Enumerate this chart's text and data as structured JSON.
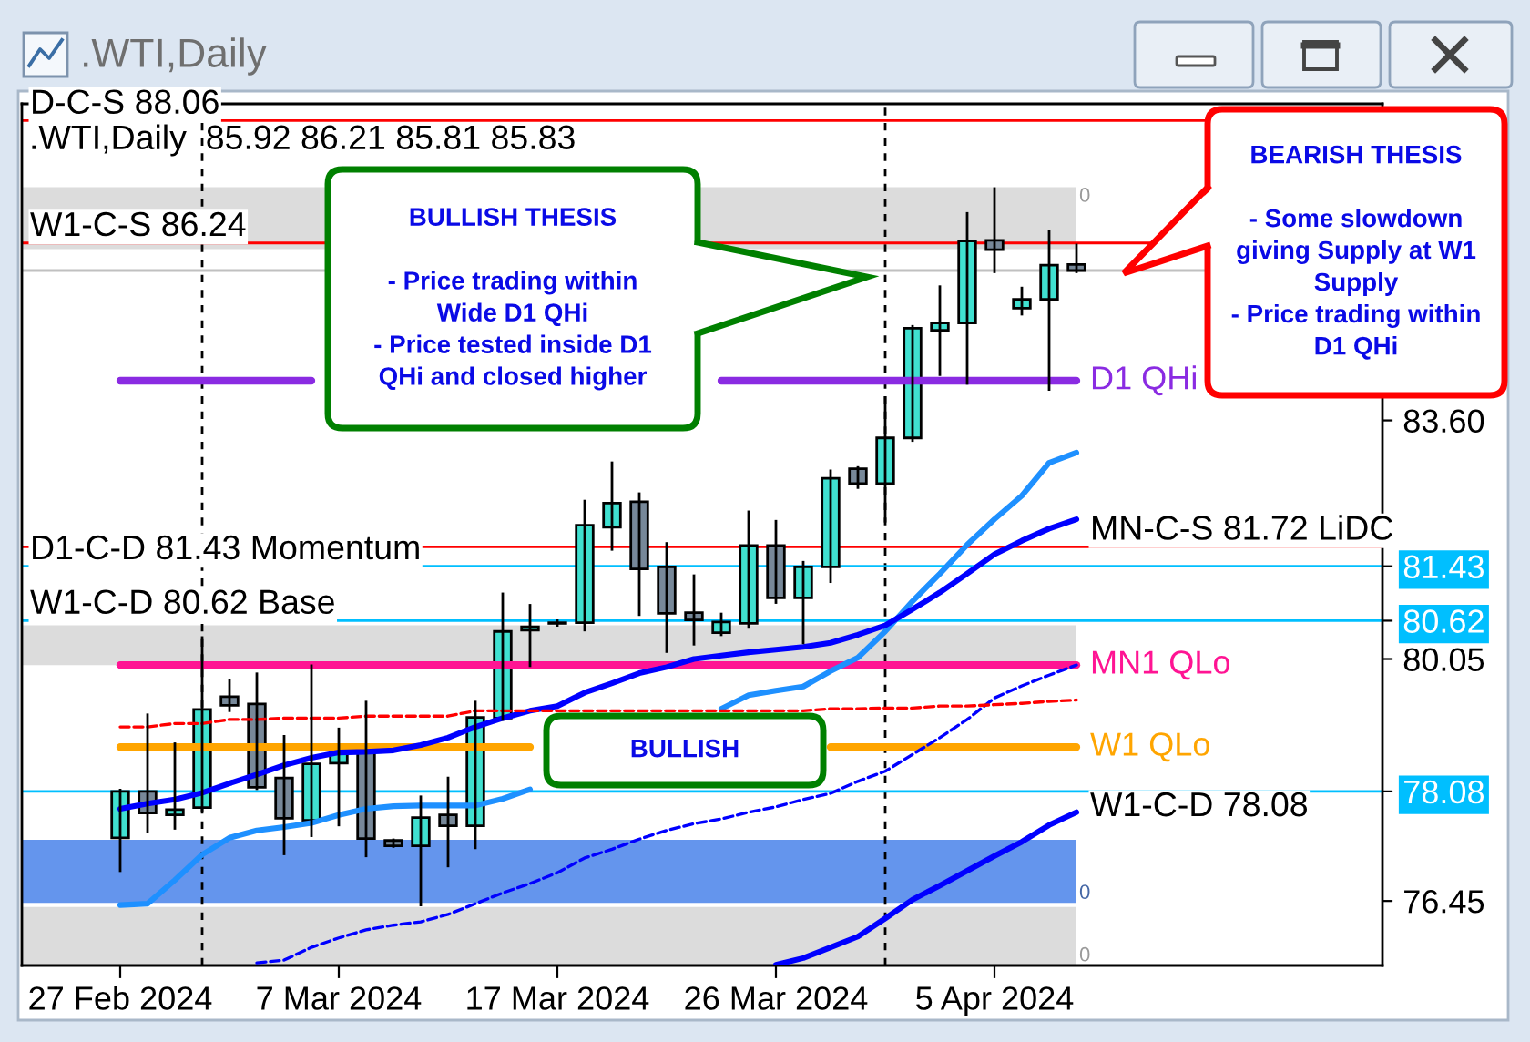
{
  "chart_data": {
    "type": "candlestick",
    "title": ".WTI,Daily",
    "subtitle": ".WTI,Daily  85.92 86.21 85.81 85.83",
    "categories": [
      "27 Feb 2024",
      null,
      null,
      null,
      null,
      null,
      null,
      null,
      "7 Mar 2024",
      null,
      null,
      null,
      null,
      null,
      null,
      null,
      "17 Mar 2024",
      null,
      null,
      null,
      null,
      null,
      null,
      null,
      "26 Mar 2024",
      null,
      null,
      null,
      null,
      null,
      null,
      null,
      "5 Apr 2024",
      null,
      null,
      null
    ],
    "ohlc": [
      [
        77.39,
        78.1,
        76.9,
        78.08
      ],
      [
        78.08,
        79.22,
        77.48,
        77.76
      ],
      [
        77.73,
        78.79,
        77.53,
        77.81
      ],
      [
        77.84,
        80.37,
        77.8,
        79.3
      ],
      [
        79.49,
        79.74,
        79.28,
        79.36
      ],
      [
        79.38,
        79.83,
        78.12,
        78.14
      ],
      [
        78.28,
        78.9,
        77.15,
        77.68
      ],
      [
        77.65,
        79.95,
        77.42,
        78.49
      ],
      [
        78.5,
        79.01,
        77.58,
        78.65
      ],
      [
        78.68,
        79.41,
        77.12,
        77.38
      ],
      [
        77.35,
        77.36,
        77.26,
        77.27
      ],
      [
        77.27,
        78.0,
        76.39,
        77.69
      ],
      [
        77.73,
        78.28,
        76.97,
        77.57
      ],
      [
        77.57,
        79.41,
        77.24,
        79.18
      ],
      [
        79.17,
        81.02,
        79.15,
        80.46
      ],
      [
        80.48,
        80.85,
        79.95,
        80.53
      ],
      [
        80.58,
        80.62,
        80.55,
        80.59
      ],
      [
        80.59,
        82.4,
        80.48,
        82.04
      ],
      [
        82.01,
        82.97,
        81.68,
        82.37
      ],
      [
        82.39,
        82.51,
        80.71,
        81.39
      ],
      [
        81.42,
        81.77,
        80.16,
        80.73
      ],
      [
        80.74,
        81.29,
        80.27,
        80.63
      ],
      [
        80.44,
        80.72,
        80.41,
        80.6
      ],
      [
        80.58,
        82.24,
        80.52,
        81.74
      ],
      [
        81.74,
        82.1,
        80.89,
        80.96
      ],
      [
        80.96,
        81.49,
        80.29,
        81.42
      ],
      [
        81.42,
        82.85,
        81.2,
        82.74
      ],
      [
        82.88,
        82.9,
        82.6,
        82.66
      ],
      [
        82.66,
        83.94,
        82.1,
        83.34
      ],
      [
        83.34,
        85.0,
        83.3,
        84.97
      ],
      [
        84.94,
        85.59,
        84.28,
        85.05
      ],
      [
        85.05,
        86.68,
        84.15,
        86.27
      ],
      [
        86.28,
        87.05,
        85.81,
        86.14
      ],
      [
        85.27,
        85.57,
        85.18,
        85.4
      ],
      [
        85.4,
        86.41,
        84.06,
        85.91
      ],
      [
        85.92,
        86.21,
        85.81,
        85.83
      ]
    ],
    "colors": [
      "#40e0d0",
      "#778899",
      "#40e0d0",
      "#40e0d0",
      "#778899",
      "#778899",
      "#778899",
      "#40e0d0",
      "#40e0d0",
      "#778899",
      "#778899",
      "#40e0d0",
      "#778899",
      "#40e0d0",
      "#40e0d0",
      "#40e0d0",
      "#40e0d0",
      "#40e0d0",
      "#40e0d0",
      "#778899",
      "#778899",
      "#778899",
      "#40e0d0",
      "#40e0d0",
      "#778899",
      "#40e0d0",
      "#40e0d0",
      "#778899",
      "#40e0d0",
      "#40e0d0",
      "#40e0d0",
      "#40e0d0",
      "#778899",
      "#40e0d0",
      "#40e0d0",
      "#778899"
    ],
    "series": [
      {
        "type": "line",
        "color": "#1e90ff",
        "values": [
          76.39,
          76.41,
          76.76,
          77.14,
          77.39,
          77.5,
          77.55,
          77.61,
          77.73,
          77.82,
          77.86,
          77.87,
          77.87,
          77.87,
          77.97,
          78.11,
          null,
          null,
          null,
          null,
          null,
          null,
          79.31,
          79.51,
          79.58,
          79.64,
          79.87,
          80.07,
          80.46,
          80.91,
          81.32,
          81.75,
          82.13,
          82.48,
          82.97,
          83.12
        ]
      },
      {
        "type": "line",
        "color": "#0000ff",
        "values": [
          77.82,
          77.9,
          77.96,
          78.06,
          78.2,
          78.33,
          78.47,
          78.58,
          78.66,
          78.67,
          78.69,
          78.77,
          78.88,
          79.04,
          79.17,
          79.28,
          79.35,
          79.55,
          79.69,
          79.84,
          79.93,
          80.05,
          80.1,
          80.15,
          80.19,
          80.23,
          80.29,
          80.41,
          80.55,
          80.79,
          81.04,
          81.32,
          81.61,
          81.81,
          81.99,
          82.13
        ]
      },
      {
        "type": "line",
        "color": "#0000ff",
        "values": [
          null,
          null,
          null,
          null,
          null,
          null,
          null,
          null,
          null,
          null,
          null,
          null,
          null,
          null,
          null,
          null,
          null,
          null,
          null,
          null,
          null,
          null,
          null,
          null,
          75.5,
          75.6,
          75.76,
          75.92,
          76.19,
          76.47,
          76.68,
          76.9,
          77.12,
          77.33,
          77.58,
          77.77
        ]
      },
      {
        "type": "line",
        "color": "#0000ff",
        "line_style": "dashed",
        "values": [
          null,
          null,
          null,
          null,
          null,
          75.53,
          75.57,
          75.76,
          75.9,
          76.02,
          76.09,
          76.14,
          76.25,
          76.41,
          76.57,
          76.71,
          76.87,
          77.09,
          77.22,
          77.37,
          77.5,
          77.6,
          77.67,
          77.77,
          77.85,
          77.96,
          78.05,
          78.23,
          78.38,
          78.63,
          78.88,
          79.15,
          79.47,
          79.65,
          79.81,
          79.96
        ]
      },
      {
        "type": "line",
        "color": "#ff0000",
        "line_style": "dashed",
        "values": [
          79.04,
          79.04,
          79.09,
          79.09,
          79.15,
          79.15,
          79.17,
          79.17,
          79.17,
          79.2,
          79.2,
          79.2,
          79.2,
          79.28,
          79.28,
          79.28,
          79.28,
          79.28,
          79.28,
          79.28,
          79.28,
          79.28,
          79.28,
          79.28,
          79.28,
          79.28,
          79.31,
          79.31,
          79.32,
          79.32,
          79.35,
          79.35,
          79.37,
          79.39,
          79.42,
          79.44
        ]
      },
      {
        "type": "line",
        "name": "D1 QHi",
        "color": "#8a2be2",
        "values": [
          84.19,
          84.19,
          84.19,
          84.19,
          84.19,
          84.19,
          84.19,
          84.19,
          null,
          null,
          null,
          null,
          null,
          null,
          null,
          null,
          null,
          null,
          null,
          null,
          null,
          null,
          84.19,
          84.19,
          84.19,
          84.19,
          84.19,
          84.19,
          84.19,
          84.19,
          84.19,
          84.19,
          84.19,
          84.19,
          84.19,
          84.19
        ]
      },
      {
        "type": "line",
        "name": "MN1 QLo",
        "color": "#ff1493",
        "values": [
          79.96,
          79.96,
          79.96,
          79.96,
          79.96,
          79.96,
          79.96,
          79.96,
          79.96,
          79.96,
          79.96,
          79.96,
          79.96,
          79.96,
          79.96,
          79.96,
          79.96,
          79.96,
          79.96,
          79.96,
          79.96,
          79.96,
          79.96,
          79.96,
          79.96,
          79.96,
          79.96,
          79.96,
          79.96,
          79.96,
          79.96,
          79.96,
          79.96,
          79.96,
          79.96,
          79.96
        ]
      },
      {
        "type": "line",
        "name": "W1 QLo",
        "color": "#ffa500",
        "values": [
          78.74,
          78.74,
          78.74,
          78.74,
          78.74,
          78.74,
          78.74,
          78.74,
          78.74,
          78.74,
          78.74,
          78.74,
          78.74,
          78.74,
          78.74,
          78.74,
          null,
          null,
          null,
          null,
          null,
          null,
          null,
          null,
          null,
          null,
          78.74,
          78.74,
          78.74,
          78.74,
          78.74,
          78.74,
          78.74,
          78.74,
          78.74,
          78.74
        ]
      }
    ],
    "ylim": [
      75.49,
      88.31
    ],
    "yticks": [
      76.45,
      78.08,
      80.05,
      80.62,
      81.43,
      {
        "value": 83.6,
        "label": "83.60"
      }
    ],
    "ref_lines": [
      {
        "axis": "y",
        "value": 88.06,
        "label": "D-C-S 88.06",
        "color": "#ff0000"
      },
      {
        "axis": "y",
        "value": 86.24,
        "label": "W1-C-S 86.24",
        "color": "#ff0000"
      },
      {
        "axis": "y",
        "value": 85.83,
        "color": "#c0c0c0"
      },
      {
        "axis": "y",
        "value": 81.72,
        "label": "MN-C-S 81.72 LiDC",
        "color": "#ff0000"
      },
      {
        "axis": "y",
        "value": 81.43,
        "label": "D1-C-D 81.43 Momentum",
        "color": "#00bfff"
      },
      {
        "axis": "y",
        "value": 80.62,
        "label": "W1-C-D 80.62 Base",
        "color": "#00bfff"
      },
      {
        "axis": "y",
        "value": 78.08,
        "label": "W1-C-D 78.08",
        "color": "#00bfff"
      }
    ],
    "bands": [
      {
        "axis": "y",
        "from": 87.07,
        "to": 86.15,
        "label": "0",
        "color": "#dcdcdc"
      },
      {
        "axis": "y",
        "from": 80.55,
        "to": 79.96,
        "color": "#dcdcdc"
      },
      {
        "axis": "y",
        "from": 76.42,
        "to": 77.36,
        "label": "0",
        "color": "#6495ed"
      },
      {
        "axis": "y",
        "from": 75.49,
        "to": 76.36,
        "label": "0",
        "color": "#dcdcdc"
      }
    ],
    "annotations": [
      "BULLISH THESIS\n\n- Price trading within\nWide D1 QHi\n- Price tested inside D1\nQHi and closed higher",
      "BULLISH",
      "BEARISH THESIS\n\n- Some slowdown\ngiving Supply at W1\nSupply\n- Price trading within\nD1 QHi"
    ]
  }
}
